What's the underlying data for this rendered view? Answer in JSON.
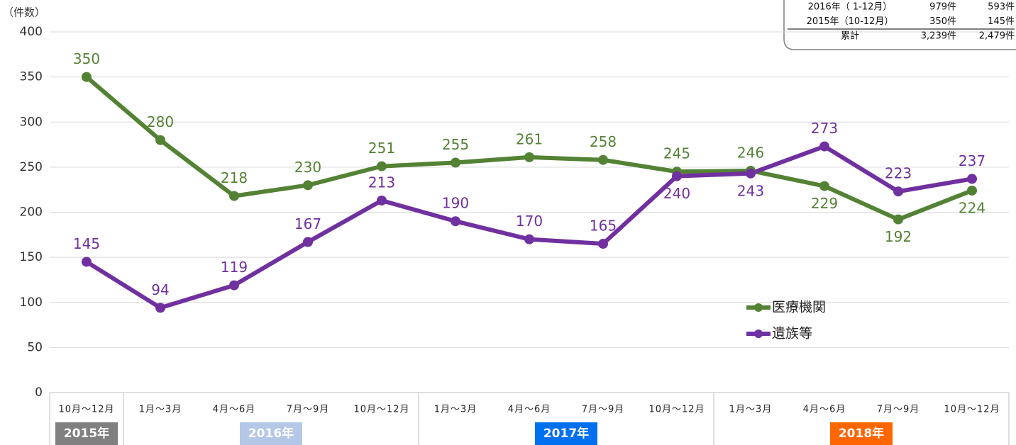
{
  "chart_data": {
    "type": "line",
    "y_axis_label": "（件数）",
    "categories": [
      "10月～12月",
      "1月～3月",
      "4月～6月",
      "7月～9月",
      "10月～12月",
      "1月～3月",
      "4月～6月",
      "7月～9月",
      "10月～12月",
      "1月～3月",
      "4月～6月",
      "7月～9月",
      "10月～12月"
    ],
    "year_groups": [
      {
        "label": "2015年",
        "span": 1,
        "color": "#808080",
        "text_color": "#ffffff"
      },
      {
        "label": "2016年",
        "span": 4,
        "color": "#b4c7e7",
        "text_color": "#ffffff"
      },
      {
        "label": "2017年",
        "span": 4,
        "color": "#0070f0",
        "text_color": "#ffffff"
      },
      {
        "label": "2018年",
        "span": 4,
        "color": "#ff6600",
        "text_color": "#ffffff"
      }
    ],
    "series": [
      {
        "name": "医療機関",
        "color": "#548235",
        "values": [
          350,
          280,
          218,
          230,
          251,
          255,
          261,
          258,
          245,
          246,
          229,
          192,
          224
        ]
      },
      {
        "name": "遺族等",
        "color": "#7030a0",
        "values": [
          145,
          94,
          119,
          167,
          213,
          190,
          170,
          165,
          240,
          243,
          273,
          223,
          237
        ]
      }
    ],
    "ylim": [
      0,
      400
    ],
    "yticks": [
      0,
      50,
      100,
      150,
      200,
      250,
      300,
      350,
      400
    ],
    "grid": true,
    "legend": "lower right",
    "table": {
      "rows": [
        [
          "2016年（ 1-12月）",
          "979件",
          "593件"
        ],
        [
          "2015年（10-12月）",
          "350件",
          "145件"
        ],
        [
          "累計",
          "3,239件",
          "2,479件"
        ]
      ]
    }
  }
}
